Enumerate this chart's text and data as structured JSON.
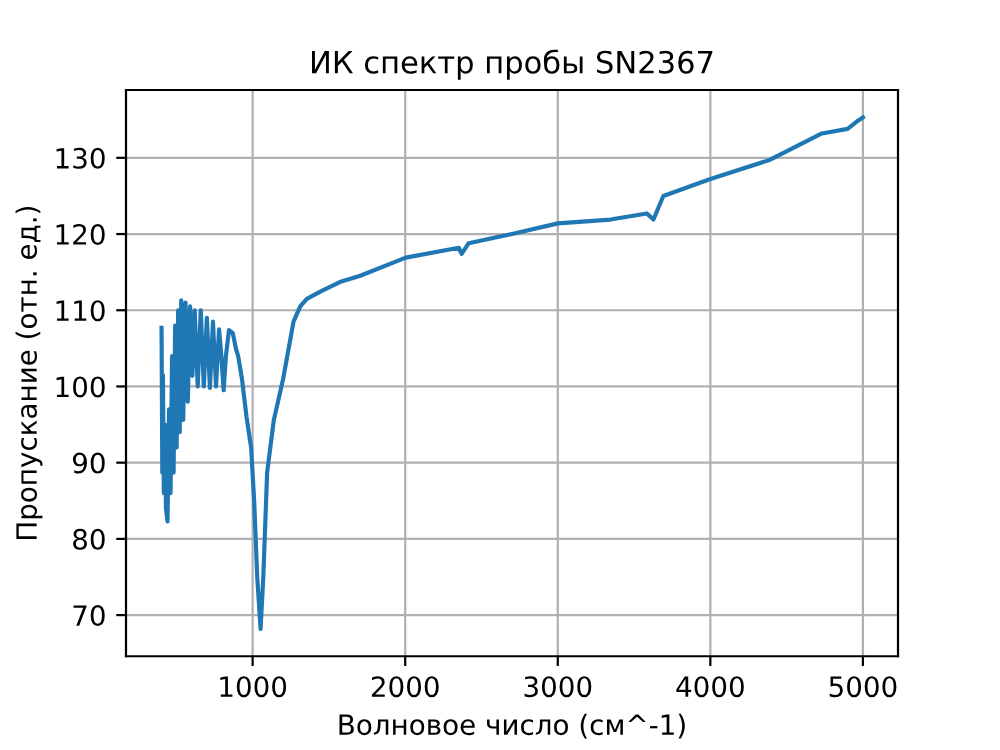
{
  "chart_data": {
    "type": "line",
    "title": "ИК спектр пробы SN2367",
    "xlabel": "Волновое число (см^-1)",
    "ylabel": "Пропускание (отн. ед.)",
    "x": [
      403,
      408,
      412,
      418,
      425,
      432,
      442,
      452,
      462,
      472,
      482,
      492,
      502,
      512,
      522,
      532,
      545,
      560,
      575,
      590,
      605,
      620,
      640,
      660,
      680,
      700,
      720,
      740,
      760,
      780,
      795,
      810,
      825,
      845,
      870,
      890,
      905,
      930,
      960,
      990,
      1010,
      1030,
      1052,
      1070,
      1095,
      1139,
      1200,
      1268,
      1312,
      1355,
      1450,
      1571,
      1701,
      2004,
      2351,
      2370,
      2416,
      2700,
      3000,
      3346,
      3584,
      3627,
      3692,
      3996,
      4386,
      4731,
      4900,
      4970,
      5000
    ],
    "series": [
      {
        "color": "#1f77b4",
        "values": [
          107.7,
          88.7,
          101.5,
          86,
          95,
          84,
          82.3,
          97,
          86,
          104,
          88.7,
          108,
          92,
          110,
          94,
          111.3,
          95.6,
          111,
          98,
          110.5,
          101.4,
          110,
          100,
          110,
          100,
          109,
          99.8,
          108.5,
          100,
          107.5,
          104,
          99.5,
          104,
          107.4,
          107,
          105,
          104,
          101,
          96,
          92,
          85,
          75,
          68.2,
          75,
          88.7,
          95.6,
          101,
          108.5,
          110.5,
          111.5,
          112.5,
          113.7,
          114.5,
          116.9,
          118.2,
          117.4,
          118.8,
          120,
          121.4,
          121.9,
          122.7,
          121.9,
          125,
          127.2,
          129.7,
          133.2,
          133.8,
          134.9,
          135.3
        ]
      }
    ],
    "xlim": [
      170,
      5230
    ],
    "ylim": [
      64.6,
      138.9
    ],
    "xticks": [
      1000,
      2000,
      3000,
      4000,
      5000
    ],
    "yticks": [
      70,
      80,
      90,
      100,
      110,
      120,
      130
    ],
    "grid": true
  }
}
